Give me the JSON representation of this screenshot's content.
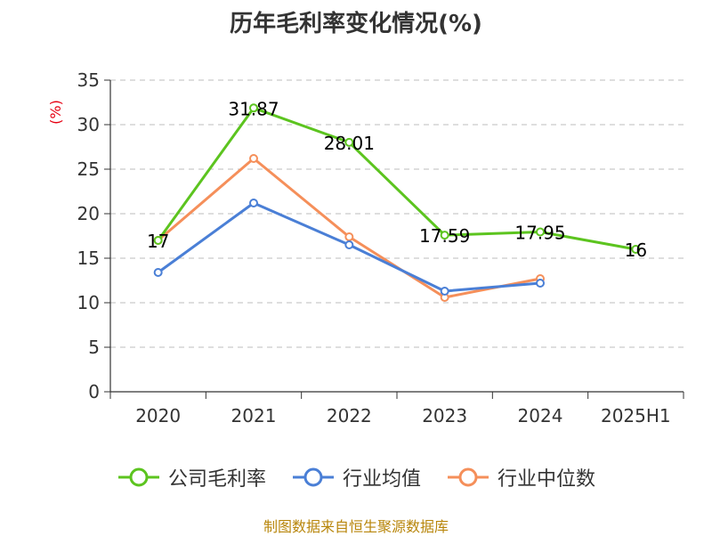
{
  "chart_data": {
    "type": "line",
    "title": "历年毛利率变化情况(%)",
    "ylabel": "(%)",
    "categories": [
      "2020",
      "2021",
      "2022",
      "2023",
      "2024",
      "2025H1"
    ],
    "ylim": [
      0,
      35
    ],
    "yticks": [
      0,
      5,
      10,
      15,
      20,
      25,
      30,
      35
    ],
    "grid": true,
    "legend_position": "bottom",
    "series": [
      {
        "name": "公司毛利率",
        "color": "#5cc41f",
        "values": [
          17,
          31.87,
          28.01,
          17.59,
          17.95,
          16
        ],
        "labels": [
          "17",
          "31.87",
          "28.01",
          "17.59",
          "17.95",
          "16"
        ]
      },
      {
        "name": "行业均值",
        "color": "#4a7fd6",
        "values": [
          13.4,
          21.2,
          16.5,
          11.3,
          12.2,
          null
        ]
      },
      {
        "name": "行业中位数",
        "color": "#f58f5a",
        "values": [
          17.0,
          26.2,
          17.4,
          10.6,
          12.7,
          null
        ]
      }
    ]
  },
  "footer": "制图数据来自恒生聚源数据库"
}
